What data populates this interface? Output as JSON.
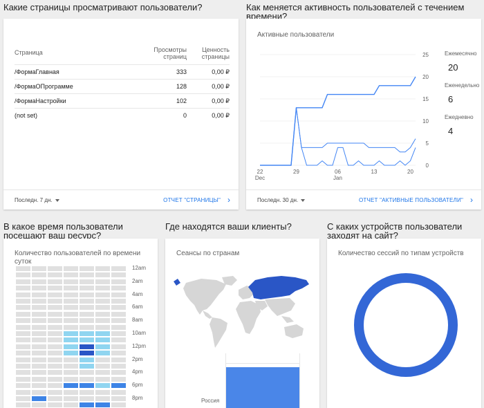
{
  "pages": {
    "question": "Какие страницы просматривают пользователи?",
    "headers": {
      "page": "Страница",
      "views": "Просмотры страниц",
      "value": "Ценность страницы"
    },
    "rows": [
      {
        "page": "/ФормаГлавная",
        "views": "333",
        "value": "0,00 ₽"
      },
      {
        "page": "/ФормаОПрограмме",
        "views": "128",
        "value": "0,00 ₽"
      },
      {
        "page": "/ФормаНастройки",
        "views": "102",
        "value": "0,00 ₽"
      },
      {
        "page": "(not set)",
        "views": "0",
        "value": "0,00 ₽"
      }
    ],
    "period": "Последн. 7 дн.",
    "report_link": "ОТЧЕТ \"СТРАНИЦЫ\""
  },
  "activity": {
    "question": "Как меняется активность пользователей с течением времени?",
    "card_title": "Активные пользователи",
    "metrics": [
      {
        "label": "Ежемесячно",
        "value": "20"
      },
      {
        "label": "Еженедельно",
        "value": "6"
      },
      {
        "label": "Ежедневно",
        "value": "4"
      }
    ],
    "period": "Последн. 30 дн.",
    "report_link": "ОТЧЕТ \"АКТИВНЫЕ ПОЛЬЗОВАТЕЛИ\""
  },
  "chart_data": {
    "type": "line",
    "x_ticks": [
      "22",
      "29",
      "06",
      "13",
      "20"
    ],
    "x_subticks": [
      "Dec",
      "Jan"
    ],
    "y_ticks": [
      "0",
      "5",
      "10",
      "15",
      "20",
      "25"
    ],
    "ylim": [
      0,
      25
    ],
    "x_dates": [
      "Dec 22",
      "Dec 23",
      "Dec 24",
      "Dec 25",
      "Dec 26",
      "Dec 27",
      "Dec 28",
      "Dec 29",
      "Dec 30",
      "Dec 31",
      "Jan 1",
      "Jan 2",
      "Jan 3",
      "Jan 4",
      "Jan 5",
      "Jan 6",
      "Jan 7",
      "Jan 8",
      "Jan 9",
      "Jan 10",
      "Jan 11",
      "Jan 12",
      "Jan 13",
      "Jan 14",
      "Jan 15",
      "Jan 16",
      "Jan 17",
      "Jan 18",
      "Jan 19",
      "Jan 20",
      "Jan 21"
    ],
    "series": [
      {
        "name": "Ежемесячно",
        "color": "#4285f4",
        "values": [
          0,
          0,
          0,
          0,
          0,
          0,
          0,
          13,
          13,
          13,
          13,
          13,
          13,
          16,
          16,
          16,
          16,
          16,
          16,
          16,
          16,
          16,
          16,
          18,
          18,
          18,
          18,
          18,
          18,
          18,
          20
        ]
      },
      {
        "name": "Еженедельно",
        "color": "#4285f4",
        "values": [
          0,
          0,
          0,
          0,
          0,
          0,
          0,
          13,
          4,
          4,
          4,
          4,
          4,
          5,
          5,
          5,
          5,
          5,
          5,
          5,
          5,
          4,
          4,
          4,
          4,
          4,
          4,
          3,
          3,
          4,
          6
        ]
      },
      {
        "name": "Ежедневно",
        "color": "#4285f4",
        "values": [
          0,
          0,
          0,
          0,
          0,
          0,
          0,
          13,
          4,
          0,
          0,
          0,
          1,
          0,
          0,
          4,
          4,
          0,
          0,
          1,
          0,
          0,
          0,
          1,
          0,
          0,
          0,
          1,
          0,
          1,
          4
        ]
      }
    ]
  },
  "time": {
    "question": "В какое время пользователи посещают ваш ресурс?",
    "card_title": "Количество пользователей по времени суток",
    "hour_labels": [
      "12am",
      "2am",
      "4am",
      "6am",
      "8am",
      "10am",
      "12pm",
      "2pm",
      "4pm",
      "6pm",
      "8pm"
    ],
    "colors": [
      "#e0e0e0",
      "#90d5f0",
      "#2a56c6",
      "#3d84e6"
    ],
    "grid": [
      [
        0,
        0,
        0,
        0,
        0,
        0,
        0
      ],
      [
        0,
        0,
        0,
        0,
        0,
        0,
        0
      ],
      [
        0,
        0,
        0,
        0,
        0,
        0,
        0
      ],
      [
        0,
        0,
        0,
        0,
        0,
        0,
        0
      ],
      [
        0,
        0,
        0,
        0,
        0,
        0,
        0
      ],
      [
        0,
        0,
        0,
        0,
        0,
        0,
        0
      ],
      [
        0,
        0,
        0,
        0,
        0,
        0,
        0
      ],
      [
        0,
        0,
        0,
        0,
        0,
        0,
        0
      ],
      [
        0,
        0,
        0,
        0,
        0,
        0,
        0
      ],
      [
        0,
        0,
        0,
        0,
        0,
        0,
        0
      ],
      [
        0,
        0,
        0,
        1,
        1,
        1,
        0
      ],
      [
        0,
        0,
        0,
        1,
        1,
        1,
        0
      ],
      [
        0,
        0,
        0,
        1,
        2,
        1,
        0
      ],
      [
        0,
        0,
        0,
        1,
        2,
        1,
        0
      ],
      [
        0,
        0,
        0,
        0,
        1,
        0,
        0
      ],
      [
        0,
        0,
        0,
        0,
        1,
        0,
        0
      ],
      [
        0,
        0,
        0,
        0,
        0,
        0,
        0
      ],
      [
        0,
        0,
        0,
        0,
        0,
        0,
        0
      ],
      [
        0,
        0,
        0,
        3,
        3,
        1,
        3
      ],
      [
        0,
        0,
        0,
        0,
        0,
        0,
        0
      ],
      [
        0,
        3,
        0,
        0,
        0,
        0,
        0
      ],
      [
        0,
        0,
        0,
        0,
        3,
        3,
        0
      ]
    ]
  },
  "geo": {
    "question": "Где находятся ваши клиенты?",
    "card_title": "Сеансы по странам",
    "bar_label": "Россия"
  },
  "devices": {
    "question": "С каких устройств пользователи заходят на сайт?",
    "card_title": "Количество сессий по типам устройств",
    "color": "#3367d6"
  }
}
